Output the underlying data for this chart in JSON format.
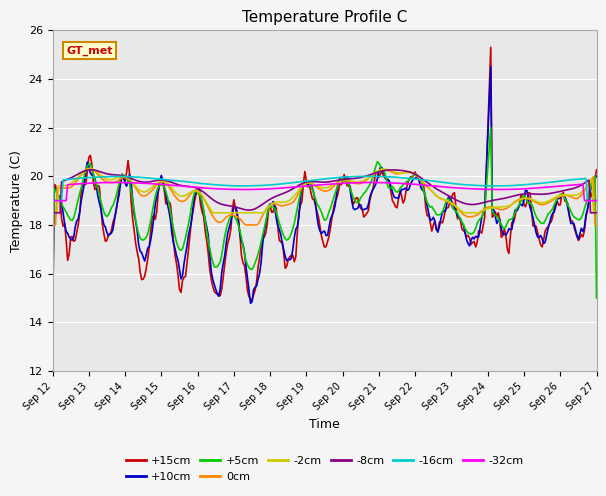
{
  "title": "Temperature Profile C",
  "xlabel": "Time",
  "ylabel": "Temperature (C)",
  "ylim": [
    12,
    26
  ],
  "xlim": [
    0,
    360
  ],
  "yticks": [
    12,
    14,
    16,
    18,
    20,
    22,
    24,
    26
  ],
  "xtick_labels": [
    "Sep 12",
    "Sep 13",
    "Sep 14",
    "Sep 15",
    "Sep 16",
    "Sep 17",
    "Sep 18",
    "Sep 19",
    "Sep 20",
    "Sep 21",
    "Sep 22",
    "Sep 23",
    "Sep 24",
    "Sep 25",
    "Sep 26",
    "Sep 27"
  ],
  "xtick_positions": [
    0,
    24,
    48,
    72,
    96,
    120,
    144,
    168,
    192,
    216,
    240,
    264,
    288,
    312,
    336,
    360
  ],
  "series": {
    "+15cm": {
      "color": "#cc0000",
      "lw": 1.2
    },
    "+10cm": {
      "color": "#0000cc",
      "lw": 1.2
    },
    "+5cm": {
      "color": "#00cc00",
      "lw": 1.2
    },
    "0cm": {
      "color": "#ff8800",
      "lw": 1.2
    },
    "-2cm": {
      "color": "#cccc00",
      "lw": 1.2
    },
    "-8cm": {
      "color": "#880088",
      "lw": 1.2
    },
    "-16cm": {
      "color": "#00cccc",
      "lw": 1.2
    },
    "-32cm": {
      "color": "#ff00ff",
      "lw": 1.2
    }
  },
  "legend_label": "GT_met",
  "legend_bg": "#ffffcc",
  "legend_border": "#cc8800",
  "plot_bg": "#e8e8e8",
  "fig_bg": "#f5f5f5"
}
